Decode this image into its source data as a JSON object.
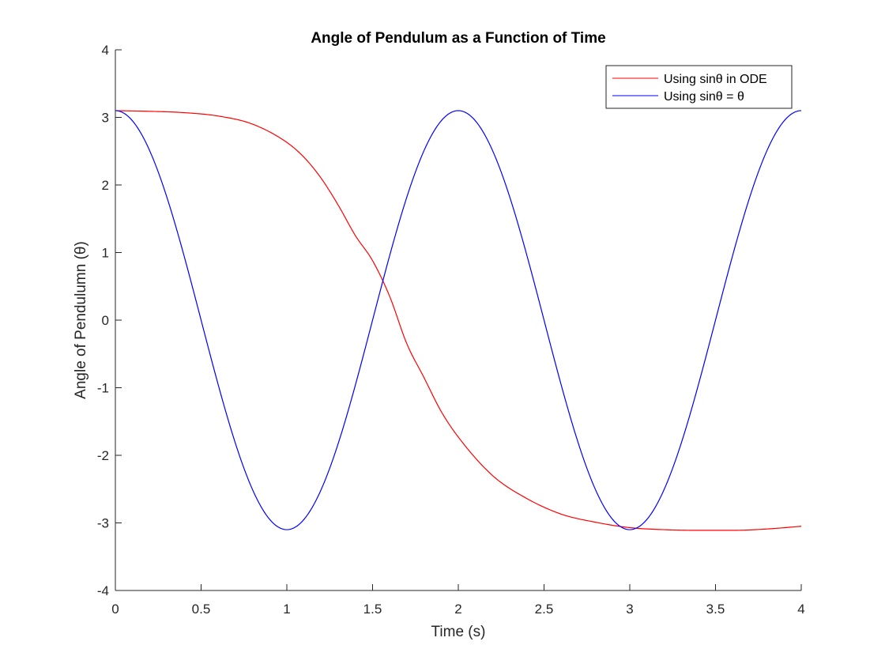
{
  "chart_data": {
    "type": "line",
    "title": "Angle of Pendulum as a Function of Time",
    "xlabel": "Time (s)",
    "ylabel": "Angle of Pendulumn (θ)",
    "xlim": [
      0,
      4
    ],
    "ylim": [
      -4,
      4
    ],
    "xticks": [
      0,
      0.5,
      1,
      1.5,
      2,
      2.5,
      3,
      3.5,
      4
    ],
    "xtick_labels": [
      "0",
      "0.5",
      "1",
      "1.5",
      "2",
      "2.5",
      "3",
      "3.5",
      "4"
    ],
    "yticks": [
      -4,
      -3,
      -2,
      -1,
      0,
      1,
      2,
      3,
      4
    ],
    "ytick_labels": [
      "-4",
      "-3",
      "-2",
      "-1",
      "0",
      "1",
      "2",
      "3",
      "4"
    ],
    "grid": false,
    "legend_position": "top-right",
    "series": [
      {
        "name": "Using sinθ in ODE",
        "color": "#ff0000",
        "x": [
          0,
          0.2,
          0.4,
          0.6,
          0.8,
          1.0,
          1.1,
          1.2,
          1.3,
          1.4,
          1.5,
          1.6,
          1.7,
          1.8,
          1.9,
          2.0,
          2.2,
          2.4,
          2.6,
          2.8,
          3.0,
          3.2,
          3.4,
          3.6,
          3.8,
          4.0
        ],
        "y": [
          3.1,
          3.09,
          3.07,
          3.02,
          2.9,
          2.63,
          2.41,
          2.1,
          1.7,
          1.25,
          0.88,
          0.35,
          -0.35,
          -0.85,
          -1.35,
          -1.73,
          -2.3,
          -2.64,
          -2.87,
          -2.99,
          -3.07,
          -3.1,
          -3.11,
          -3.11,
          -3.09,
          -3.05
        ]
      },
      {
        "name": "Using sinθ = θ",
        "color": "#0000ff",
        "x": [
          0,
          0.25,
          0.5,
          0.75,
          1.0,
          1.25,
          1.5,
          1.75,
          2.0,
          2.25,
          2.5,
          2.75,
          3.0,
          3.25,
          3.5,
          3.75,
          4.0
        ],
        "y": [
          3.1,
          2.19,
          0,
          -2.19,
          -3.1,
          -2.19,
          0,
          2.19,
          3.1,
          2.19,
          0,
          -2.19,
          -3.1,
          -2.19,
          0,
          2.19,
          3.1
        ]
      }
    ]
  }
}
